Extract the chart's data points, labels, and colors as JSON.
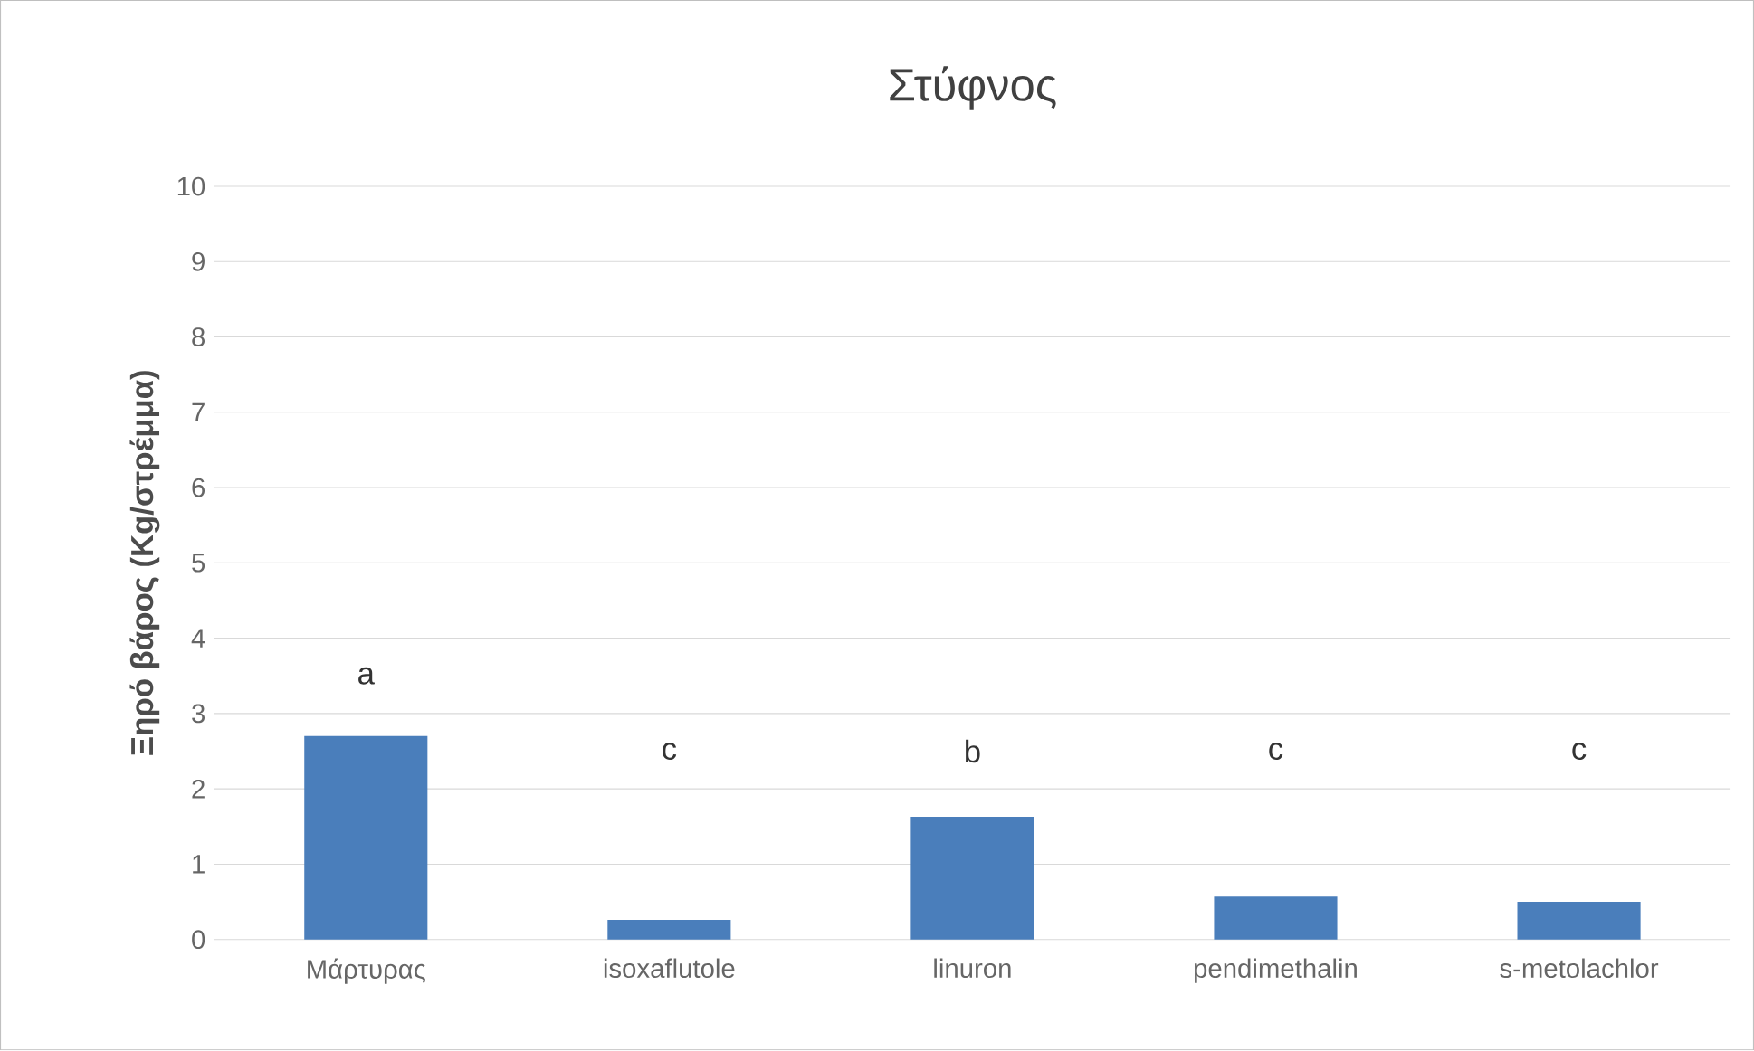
{
  "chart_data": {
    "type": "bar",
    "title": "Στύφνος",
    "ylabel": "Ξηρό βάρος (Kg/στρέμμα)",
    "categories": [
      "Μάρτυρας",
      "isoxaflutole",
      "linuron",
      "pendimethalin",
      "s-metolachlor"
    ],
    "values": [
      2.7,
      0.26,
      1.63,
      0.57,
      0.5
    ],
    "color": "#4a7ebb",
    "ylim": [
      0,
      10
    ],
    "yticks": [
      0,
      1,
      2,
      3,
      4,
      5,
      6,
      7,
      8,
      9,
      10
    ],
    "grid": "y",
    "annotations": [
      "a",
      "c",
      "b",
      "c",
      "c"
    ]
  }
}
